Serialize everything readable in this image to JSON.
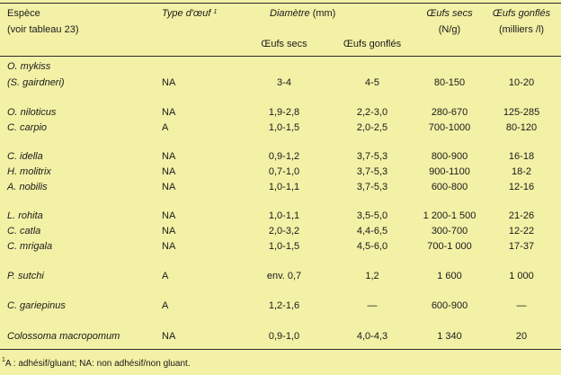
{
  "header": {
    "espece": "Espèce",
    "espece_sub": "(voir tableau 23)",
    "type": "Type d'œuf",
    "type_sup": "1",
    "diametre": "Diamètre",
    "diametre_unit": "(mm)",
    "secs_sub": "Œufs secs",
    "gonfles_sub": "Œufs gonflés",
    "oeufs_secs": "Œufs secs",
    "oeufs_secs_unit": "(N/g)",
    "oeufs_gonfles": "Œufs gonflés",
    "oeufs_gonfles_unit": "(milliers /l)"
  },
  "rows": [
    {
      "species": "O. mykiss",
      "type": "",
      "secs": "",
      "gonfles": "",
      "ns": "",
      "mg": ""
    },
    {
      "species": "(S. gairdneri)",
      "type": "NA",
      "secs": "3-4",
      "gonfles": "4-5",
      "ns": "80-150",
      "mg": "10-20"
    },
    {
      "species": "O. niloticus",
      "type": "NA",
      "secs": "1,9-2,8",
      "gonfles": "2,2-3,0",
      "ns": "280-670",
      "mg": "125-285"
    },
    {
      "species": "C. carpio",
      "type": "A",
      "secs": "1,0-1,5",
      "gonfles": "2,0-2,5",
      "ns": "700-1000",
      "mg": "80-120"
    },
    {
      "species": "C. idella",
      "type": "NA",
      "secs": "0,9-1,2",
      "gonfles": "3,7-5,3",
      "ns": "800-900",
      "mg": "16-18"
    },
    {
      "species": "H. molitrix",
      "type": "NA",
      "secs": "0,7-1,0",
      "gonfles": "3,7-5,3",
      "ns": "900-1100",
      "mg": "18-2"
    },
    {
      "species": "A. nobilis",
      "type": "NA",
      "secs": "1,0-1,1",
      "gonfles": "3,7-5,3",
      "ns": "600-800",
      "mg": "12-16"
    },
    {
      "species": "L. rohita",
      "type": "NA",
      "secs": "1,0-1,1",
      "gonfles": "3,5-5,0",
      "ns": "1 200-1 500",
      "mg": "21-26"
    },
    {
      "species": "C. catla",
      "type": "NA",
      "secs": "2,0-3,2",
      "gonfles": "4,4-6,5",
      "ns": "300-700",
      "mg": "12-22"
    },
    {
      "species": "C. mrigala",
      "type": "NA",
      "secs": "1,0-1,5",
      "gonfles": "4,5-6,0",
      "ns": "700-1 000",
      "mg": "17-37"
    },
    {
      "species": "P. sutchi",
      "type": "A",
      "secs": "env. 0,7",
      "gonfles": "1,2",
      "ns": "1 600",
      "mg": "1 000"
    },
    {
      "species": "C. gariepinus",
      "type": "A",
      "secs": "1,2-1,6",
      "gonfles": "—",
      "ns": "600-900",
      "mg": "—"
    },
    {
      "species": "Colossoma macropomum",
      "type": "NA",
      "secs": "0,9-1,0",
      "gonfles": "4,0-4,3",
      "ns": "1 340",
      "mg": "20"
    }
  ],
  "footnote": {
    "mark": "1",
    "text": "A : adhésif/gluant; NA: non adhésif/non gluant."
  }
}
